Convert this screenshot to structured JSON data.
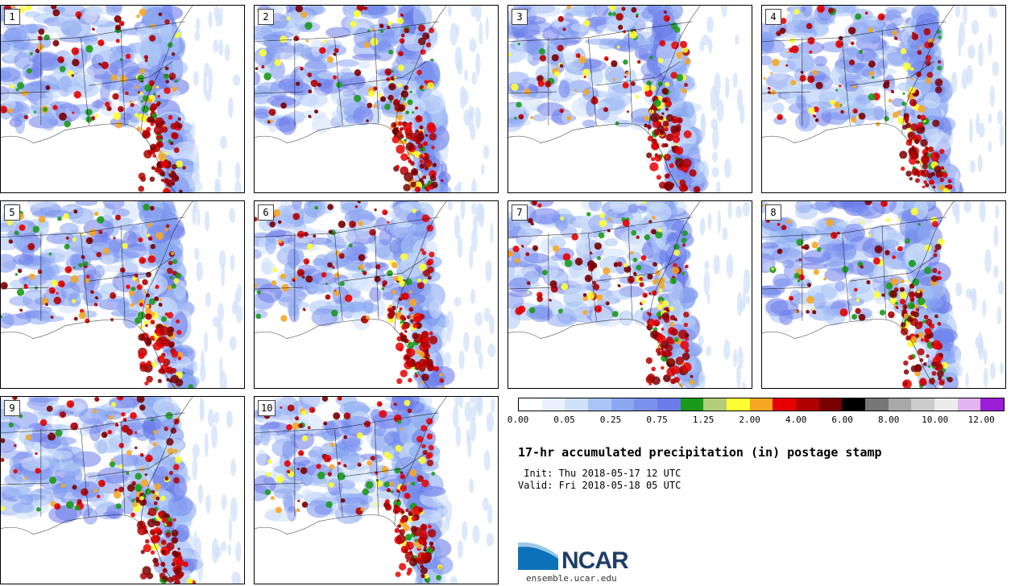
{
  "panels": [
    {
      "label": "1"
    },
    {
      "label": "2"
    },
    {
      "label": "3"
    },
    {
      "label": "4"
    },
    {
      "label": "5"
    },
    {
      "label": "6"
    },
    {
      "label": "7"
    },
    {
      "label": "8"
    },
    {
      "label": "9"
    },
    {
      "label": "10"
    }
  ],
  "colorbar": {
    "colors": [
      "#ffffff",
      "#e8f1fd",
      "#cfe0fa",
      "#a9c4f5",
      "#8aa8f1",
      "#7a92ee",
      "#6b7cea",
      "#1a9a1a",
      "#b4cd7a",
      "#ffff33",
      "#f5a623",
      "#e60000",
      "#b00000",
      "#7a0000",
      "#000000",
      "#777777",
      "#a8a8a8",
      "#cccccc",
      "#ececec",
      "#e3b4f2",
      "#9b1fd8"
    ],
    "tick_labels": [
      "0.00",
      "0.05",
      "0.25",
      "0.75",
      "1.25",
      "2.00",
      "4.00",
      "6.00",
      "8.00",
      "10.00",
      "12.00"
    ]
  },
  "title": "17-hr accumulated precipitation (in) postage stamp",
  "init_line": " Init: Thu 2018-05-17 12 UTC",
  "valid_line": "Valid: Fri 2018-05-18 05 UTC",
  "logo": {
    "text": "NCAR",
    "url": "ensemble.ucar.edu",
    "brand_color": "#0d71b9"
  }
}
